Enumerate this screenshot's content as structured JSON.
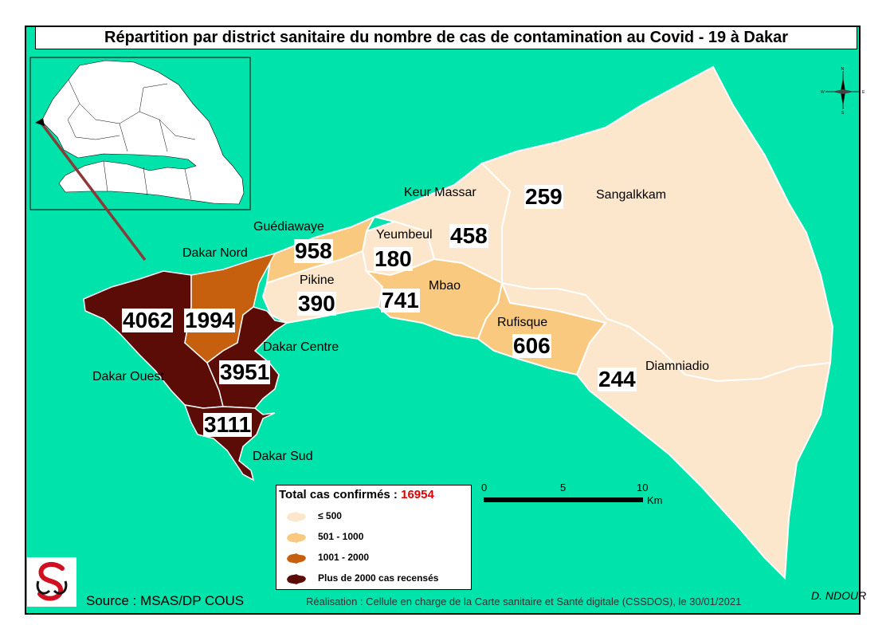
{
  "title": "Répartition par district sanitaire du nombre de cas de contamination au Covid - 19 à Dakar",
  "colors": {
    "sea": "#00E3AA",
    "le_500": "#FCE7CC",
    "501_1000": "#F9C980",
    "1001_2000": "#C65F0E",
    "over_2000": "#5C0C06"
  },
  "districts": [
    {
      "name": "Dakar Ouest",
      "cases": 4062,
      "class": "over_2000"
    },
    {
      "name": "Dakar Nord",
      "cases": 1994,
      "class": "1001_2000"
    },
    {
      "name": "Dakar Centre",
      "cases": 3951,
      "class": "over_2000"
    },
    {
      "name": "Dakar Sud",
      "cases": 3111,
      "class": "over_2000"
    },
    {
      "name": "Guédiawaye",
      "cases": 958,
      "class": "501_1000"
    },
    {
      "name": "Pikine",
      "cases": 390,
      "class": "le_500"
    },
    {
      "name": "Yeumbeul",
      "cases": 180,
      "class": "le_500"
    },
    {
      "name": "Keur Massar",
      "cases": 458,
      "class": "le_500"
    },
    {
      "name": "Mbao",
      "cases": 741,
      "class": "501_1000"
    },
    {
      "name": "Rufisque",
      "cases": 606,
      "class": "501_1000"
    },
    {
      "name": "Sangalkkam",
      "cases": 259,
      "class": "le_500"
    },
    {
      "name": "Diamniadio",
      "cases": 244,
      "class": "le_500"
    }
  ],
  "legend": {
    "title": "Total cas confirmés :",
    "total": "16954",
    "items": [
      {
        "label": "≤ 500",
        "color": "#FCE7CC"
      },
      {
        "label": "501 - 1000",
        "color": "#F9C980"
      },
      {
        "label": "1001 - 2000",
        "color": "#C65F0E"
      },
      {
        "label": "Plus de 2000 cas recensés",
        "color": "#5C0C06"
      }
    ]
  },
  "scale": {
    "ticks": [
      "0",
      "5",
      "10"
    ],
    "unit": "Km"
  },
  "north_arrow": {
    "icon": "north-arrow-icon"
  },
  "footer": {
    "source": "Source : MSAS/DP COUS",
    "realisation": "Réalisation : Cellule en charge de la Carte sanitaire et Santé digitale (CSSDOS), le 30/01/2021",
    "author": "D. NDOUR"
  },
  "logo": {
    "icon": "health-ministry-logo-icon"
  }
}
